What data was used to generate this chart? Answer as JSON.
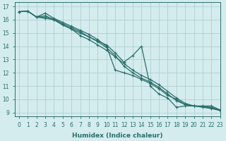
{
  "xlabel": "Humidex (Indice chaleur)",
  "ylabel": "",
  "bg_color": "#d4ecee",
  "grid_color": "#aecfd4",
  "line_color": "#2a6e6a",
  "xlim": [
    -0.5,
    23
  ],
  "ylim": [
    8.7,
    17.3
  ],
  "xticks": [
    0,
    1,
    2,
    3,
    4,
    5,
    6,
    7,
    8,
    9,
    10,
    11,
    12,
    13,
    14,
    15,
    16,
    17,
    18,
    19,
    20,
    21,
    22,
    23
  ],
  "yticks": [
    9,
    10,
    11,
    12,
    13,
    14,
    15,
    16,
    17
  ],
  "series": [
    [
      16.6,
      16.65,
      16.2,
      16.3,
      16.0,
      15.6,
      15.3,
      15.0,
      14.7,
      14.4,
      14.1,
      13.5,
      12.8,
      13.3,
      14.0,
      11.0,
      10.4,
      10.1,
      9.4,
      9.5,
      9.5,
      9.5,
      9.5,
      9.2
    ],
    [
      16.6,
      16.65,
      16.2,
      16.5,
      16.1,
      15.8,
      15.5,
      15.2,
      14.9,
      14.5,
      14.0,
      12.2,
      12.0,
      11.8,
      11.5,
      11.2,
      10.8,
      10.3,
      10.0,
      9.6,
      9.5,
      9.45,
      9.35,
      9.2
    ],
    [
      16.6,
      16.65,
      16.2,
      16.1,
      16.0,
      15.6,
      15.3,
      14.8,
      14.5,
      14.1,
      13.7,
      13.2,
      12.7,
      12.2,
      11.8,
      11.5,
      11.1,
      10.6,
      10.1,
      9.7,
      9.5,
      9.4,
      9.3,
      9.15
    ],
    [
      16.6,
      16.65,
      16.2,
      16.2,
      16.05,
      15.7,
      15.4,
      15.1,
      14.7,
      14.35,
      13.9,
      13.3,
      12.5,
      12.0,
      11.6,
      11.3,
      10.9,
      10.4,
      9.9,
      9.6,
      9.5,
      9.45,
      9.4,
      9.2
    ]
  ],
  "marker": "+",
  "markersize": 3,
  "linewidth": 0.9,
  "xlabel_fontsize": 6.5,
  "tick_fontsize": 5.5
}
